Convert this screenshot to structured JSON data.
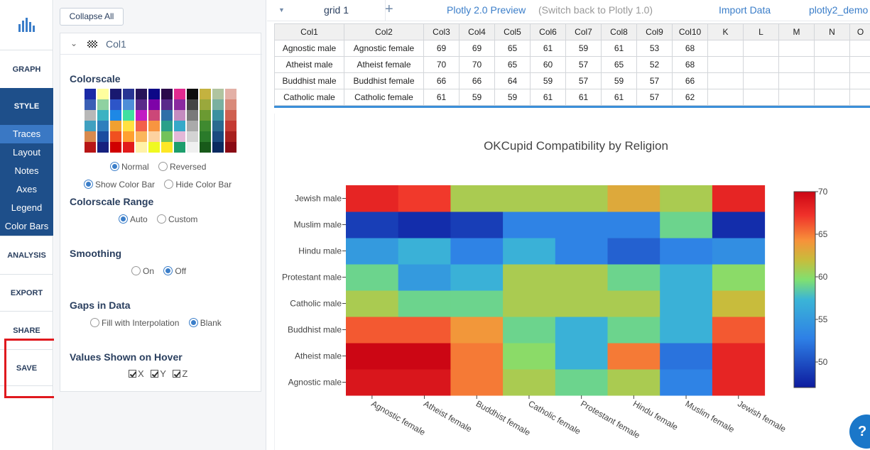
{
  "nav": {
    "logo_icon": "plotly-bars-icon",
    "graph": "GRAPH",
    "style": "STYLE",
    "style_subitems": [
      "Traces",
      "Layout",
      "Notes",
      "Axes",
      "Legend",
      "Color Bars"
    ],
    "analysis": "ANALYSIS",
    "export": "EXPORT",
    "share": "SHARE",
    "save": "SAVE",
    "highlight_color": "#e0191e"
  },
  "panel": {
    "collapse_all": "Collapse All",
    "trace_name": "Col1",
    "colorscale": {
      "title": "Colorscale",
      "palettes": [
        [
          "#1a2aa6",
          "#3a5fb5",
          "#b8b8b8",
          "#40a0c0",
          "#d88a4e",
          "#b71515"
        ],
        [
          "#fffe9e",
          "#8fd1a1",
          "#3cb2c2",
          "#2f7fbd",
          "#1a4da0",
          "#16217e"
        ],
        [
          "#191970",
          "#2d55c8",
          "#1e88e5",
          "#f0a030",
          "#f05020",
          "#d00000"
        ],
        [
          "#283593",
          "#4e8ed8",
          "#40e0a0",
          "#ffe040",
          "#ffa030",
          "#e21b1b"
        ],
        [
          "#26145a",
          "#5a2a8a",
          "#c21ac4",
          "#f35f4b",
          "#fbb65b",
          "#fff2a8"
        ],
        [
          "#0d0887",
          "#7e03a8",
          "#cc4778",
          "#f89540",
          "#fdd2a0",
          "#f0f921"
        ],
        [
          "#2b0a4a",
          "#592a8a",
          "#2e6fa8",
          "#2aa08a",
          "#73c25a",
          "#fde725"
        ],
        [
          "#e02a8f",
          "#8a2a9f",
          "#c48bc0",
          "#35a9c9",
          "#e3b8d8",
          "#1d9e6c"
        ],
        [
          "#0d0d0d",
          "#444444",
          "#7a7a7a",
          "#aaaaaa",
          "#d3d3d3",
          "#f0f0f0"
        ],
        [
          "#c4b23f",
          "#9aa83c",
          "#6b9a32",
          "#3f8a30",
          "#2a7a2a",
          "#185a1a"
        ],
        [
          "#b0c4a0",
          "#7ab0a0",
          "#3a90a0",
          "#2a6a90",
          "#1a4a80",
          "#0a2a60"
        ],
        [
          "#e3b0a6",
          "#d98a7a",
          "#cf6050",
          "#c43a32",
          "#a8201e",
          "#8a0a14"
        ]
      ],
      "normal": "Normal",
      "reversed": "Reversed",
      "show_color_bar": "Show Color Bar",
      "hide_color_bar": "Hide Color Bar"
    },
    "colorscale_range": {
      "title": "Colorscale Range",
      "auto": "Auto",
      "custom": "Custom"
    },
    "smoothing": {
      "title": "Smoothing",
      "on": "On",
      "off": "Off"
    },
    "gaps": {
      "title": "Gaps in Data",
      "fill": "Fill with Interpolation",
      "blank": "Blank"
    },
    "hover": {
      "title": "Values Shown on Hover",
      "x": "X",
      "y": "Y",
      "z": "Z"
    }
  },
  "topbar": {
    "grid_name": "grid 1",
    "plus_icon": "plus-icon",
    "preview": "Plotly 2.0 Preview",
    "switch_back": "(Switch back to Plotly 1.0)",
    "import_data": "Import Data",
    "user": "plotly2_demo"
  },
  "grid": {
    "headers": [
      "Col1",
      "Col2",
      "Col3",
      "Col4",
      "Col5",
      "Col6",
      "Col7",
      "Col8",
      "Col9",
      "Col10",
      "K",
      "L",
      "M",
      "N",
      "O"
    ],
    "rows": [
      [
        "Agnostic male",
        "Agnostic female",
        "69",
        "69",
        "65",
        "61",
        "59",
        "61",
        "53",
        "68",
        "",
        "",
        "",
        "",
        ""
      ],
      [
        "Atheist male",
        "Atheist female",
        "70",
        "70",
        "65",
        "60",
        "57",
        "65",
        "52",
        "68",
        "",
        "",
        "",
        "",
        ""
      ],
      [
        "Buddhist male",
        "Buddhist female",
        "66",
        "66",
        "64",
        "59",
        "57",
        "59",
        "57",
        "66",
        "",
        "",
        "",
        "",
        ""
      ],
      [
        "Catholic male",
        "Catholic female",
        "61",
        "59",
        "59",
        "61",
        "61",
        "61",
        "57",
        "62",
        "",
        "",
        "",
        "",
        ""
      ]
    ]
  },
  "chart_data": {
    "type": "heatmap",
    "title": "OKCupid Compatibility by Religion",
    "x": [
      "Agnostic female",
      "Atheist female",
      "Buddhist female",
      "Catholic female",
      "Protestant female",
      "Hindu female",
      "Muslim female",
      "Jewish female"
    ],
    "y": [
      "Agnostic male",
      "Atheist male",
      "Buddhist male",
      "Catholic male",
      "Protestant male",
      "Hindu male",
      "Muslim male",
      "Jewish male"
    ],
    "z": [
      [
        69,
        69,
        65,
        61,
        59,
        61,
        53,
        68
      ],
      [
        70,
        70,
        65,
        60,
        57,
        65,
        52,
        68
      ],
      [
        66,
        66,
        64,
        59,
        57,
        59,
        57,
        66
      ],
      [
        61,
        59,
        59,
        61,
        61,
        61,
        57,
        62
      ],
      [
        59,
        55,
        57,
        61,
        61,
        59,
        57,
        60
      ],
      [
        55,
        57,
        53,
        57,
        53,
        51,
        53,
        54
      ],
      [
        49,
        48,
        49,
        53,
        53,
        53,
        59,
        48
      ],
      [
        68,
        67,
        61,
        61,
        61,
        63,
        61,
        68
      ]
    ],
    "zmin": 47,
    "zmax": 70,
    "colorbar_ticks": [
      50,
      55,
      60,
      65,
      70
    ],
    "colorscale": [
      [
        0.0,
        "#0d1b9e"
      ],
      [
        0.25,
        "#2e80e6"
      ],
      [
        0.45,
        "#3bb5d6"
      ],
      [
        0.55,
        "#80e070"
      ],
      [
        0.65,
        "#c7bd3c"
      ],
      [
        0.75,
        "#f7923a"
      ],
      [
        0.88,
        "#f0312a"
      ],
      [
        1.0,
        "#cc0614"
      ]
    ]
  },
  "help_icon": "help-chat-icon"
}
